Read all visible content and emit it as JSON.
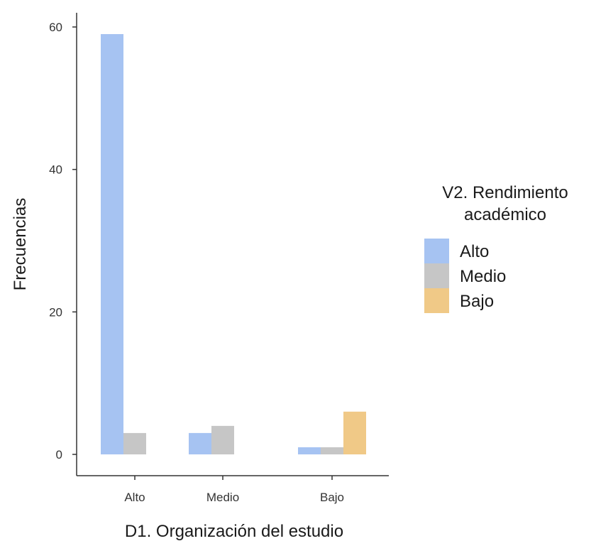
{
  "chart_data": {
    "type": "bar",
    "xlabel": "D1. Organización del estudio",
    "ylabel": "Frecuencias",
    "categories": [
      "Alto",
      "Medio",
      "Bajo"
    ],
    "ylim": [
      0,
      62
    ],
    "yticks": [
      0,
      20,
      40,
      60
    ],
    "grid": false,
    "legend": {
      "title_lines": [
        "V2. Rendimiento",
        "académico"
      ],
      "placement": "right"
    },
    "series": [
      {
        "name": "Alto",
        "color": "#A6C3F2",
        "values": [
          59,
          3,
          1
        ]
      },
      {
        "name": "Medio",
        "color": "#C6C6C6",
        "values": [
          3,
          4,
          1
        ]
      },
      {
        "name": "Bajo",
        "color": "#F0C987",
        "values": [
          0,
          0,
          6
        ]
      }
    ]
  }
}
